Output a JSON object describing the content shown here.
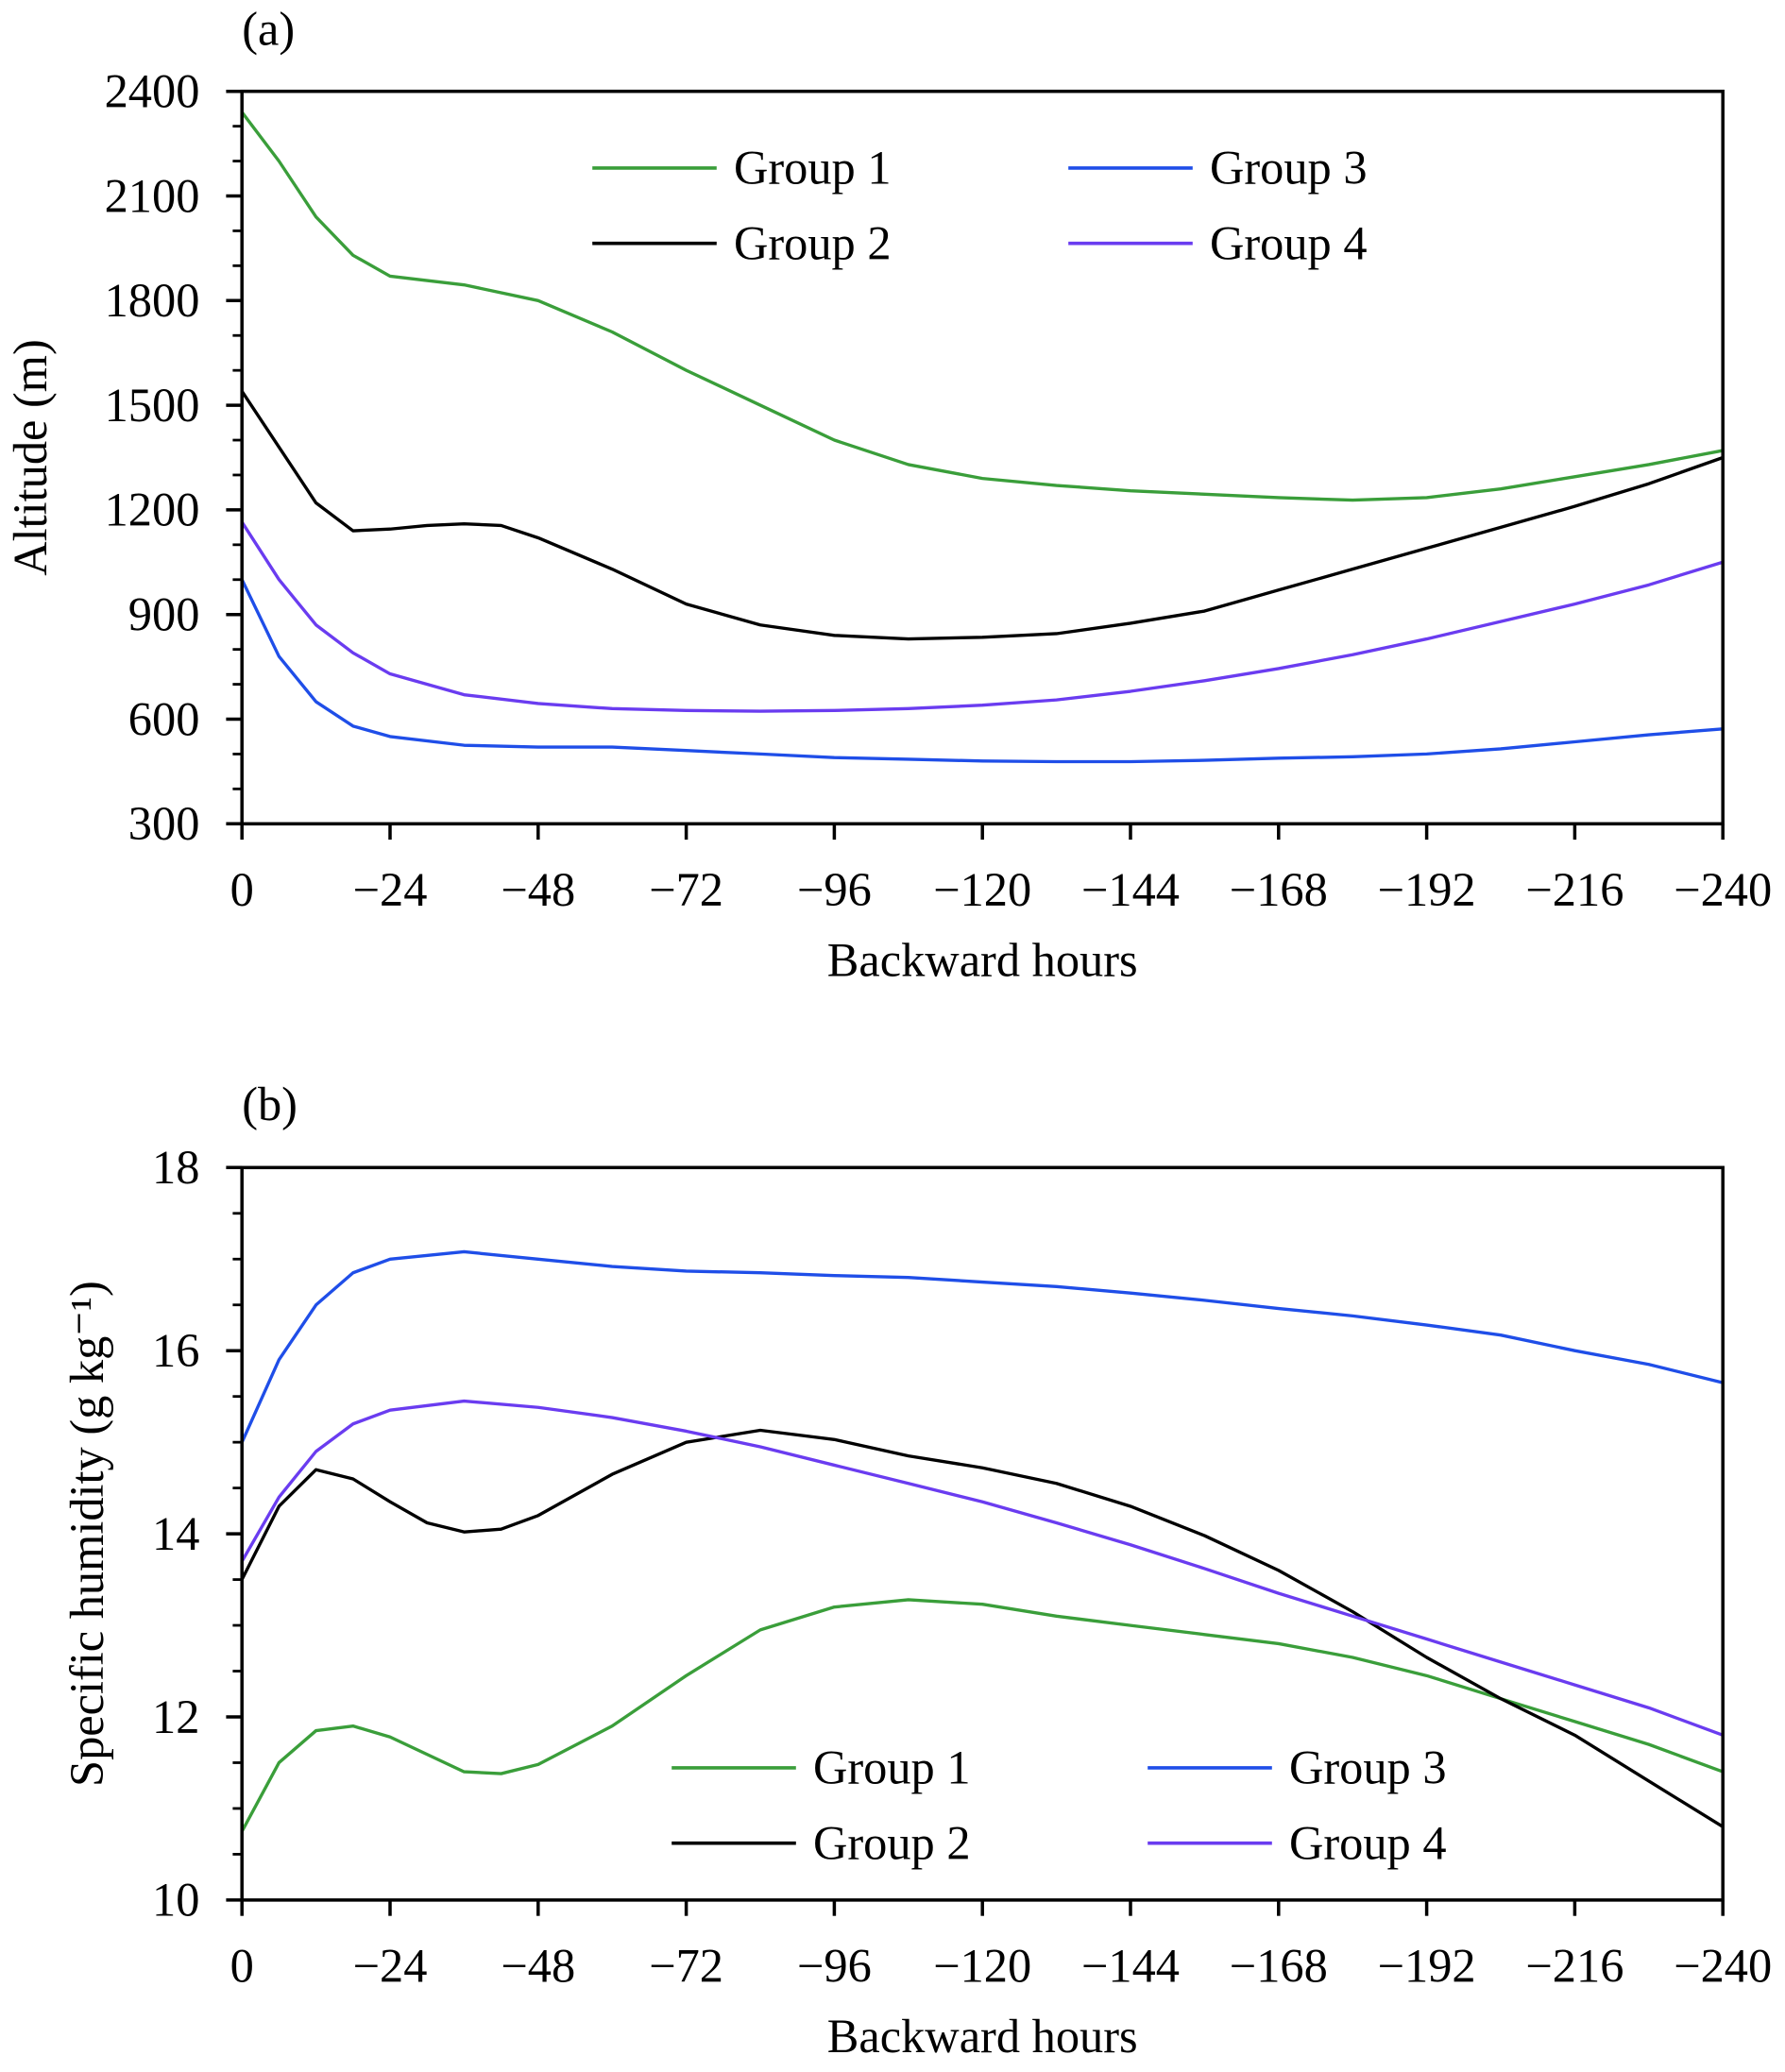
{
  "chart_data": [
    {
      "type": "line",
      "panel_label": "(a)",
      "xlabel": "Backward hours",
      "ylabel": "Altitude (m)",
      "xlim": [
        0,
        -240
      ],
      "ylim": [
        300,
        2400
      ],
      "xticks": [
        0,
        -24,
        -48,
        -72,
        -96,
        -120,
        -144,
        -168,
        -192,
        -216,
        -240
      ],
      "xtick_labels": [
        "0",
        "−24",
        "−48",
        "−72",
        "−96",
        "−120",
        "−144",
        "−168",
        "−192",
        "−216",
        "−240"
      ],
      "yticks": [
        300,
        600,
        900,
        1200,
        1500,
        1800,
        2100,
        2400
      ],
      "ytick_labels": [
        "300",
        "600",
        "900",
        "1200",
        "1500",
        "1800",
        "2100",
        "2400"
      ],
      "grid": false,
      "legend_placement": "top-center",
      "series": [
        {
          "name": "Group 1",
          "color": "#3a9e3a",
          "x": [
            0,
            -6,
            -12,
            -18,
            -24,
            -36,
            -48,
            -60,
            -72,
            -84,
            -96,
            -108,
            -120,
            -132,
            -144,
            -156,
            -168,
            -180,
            -192,
            -204,
            -216,
            -228,
            -240
          ],
          "y": [
            2340,
            2200,
            2040,
            1930,
            1870,
            1845,
            1800,
            1710,
            1600,
            1500,
            1400,
            1330,
            1290,
            1270,
            1255,
            1245,
            1235,
            1228,
            1235,
            1260,
            1295,
            1330,
            1370
          ]
        },
        {
          "name": "Group 2",
          "color": "#000000",
          "x": [
            0,
            -6,
            -12,
            -18,
            -24,
            -30,
            -36,
            -42,
            -48,
            -60,
            -72,
            -84,
            -96,
            -108,
            -120,
            -132,
            -144,
            -156,
            -168,
            -180,
            -192,
            -204,
            -216,
            -228,
            -240
          ],
          "y": [
            1540,
            1380,
            1220,
            1140,
            1145,
            1155,
            1160,
            1155,
            1120,
            1030,
            930,
            870,
            840,
            830,
            835,
            845,
            875,
            910,
            970,
            1030,
            1090,
            1150,
            1210,
            1275,
            1350
          ]
        },
        {
          "name": "Group 3",
          "color": "#1f4ee8",
          "x": [
            0,
            -6,
            -12,
            -18,
            -24,
            -36,
            -48,
            -60,
            -72,
            -84,
            -96,
            -108,
            -120,
            -132,
            -144,
            -156,
            -168,
            -180,
            -192,
            -204,
            -216,
            -228,
            -240
          ],
          "y": [
            1000,
            780,
            650,
            580,
            550,
            525,
            520,
            520,
            510,
            500,
            490,
            485,
            480,
            478,
            478,
            482,
            488,
            492,
            500,
            515,
            535,
            555,
            572
          ]
        },
        {
          "name": "Group 4",
          "color": "#6a3cf0",
          "x": [
            0,
            -6,
            -12,
            -18,
            -24,
            -36,
            -48,
            -60,
            -72,
            -84,
            -96,
            -108,
            -120,
            -132,
            -144,
            -156,
            -168,
            -180,
            -192,
            -204,
            -216,
            -228,
            -240
          ],
          "y": [
            1165,
            1000,
            870,
            790,
            730,
            670,
            645,
            630,
            625,
            623,
            625,
            630,
            640,
            655,
            680,
            710,
            745,
            785,
            830,
            880,
            930,
            985,
            1050
          ]
        }
      ]
    },
    {
      "type": "line",
      "panel_label": "(b)",
      "xlabel": "Backward hours",
      "ylabel": "Specific humidity (g kg⁻¹)",
      "xlim": [
        0,
        -240
      ],
      "ylim": [
        10,
        18
      ],
      "xticks": [
        0,
        -24,
        -48,
        -72,
        -96,
        -120,
        -144,
        -168,
        -192,
        -216,
        -240
      ],
      "xtick_labels": [
        "0",
        "−24",
        "−48",
        "−72",
        "−96",
        "−120",
        "−144",
        "−168",
        "−192",
        "−216",
        "−240"
      ],
      "yticks": [
        10,
        12,
        14,
        16,
        18
      ],
      "ytick_labels": [
        "10",
        "12",
        "14",
        "16",
        "18"
      ],
      "grid": false,
      "legend_placement": "bottom-center",
      "series": [
        {
          "name": "Group 1",
          "color": "#3a9e3a",
          "x": [
            0,
            -6,
            -12,
            -18,
            -24,
            -36,
            -42,
            -48,
            -60,
            -72,
            -84,
            -96,
            -108,
            -120,
            -132,
            -144,
            -156,
            -168,
            -180,
            -192,
            -204,
            -216,
            -228,
            -240
          ],
          "y": [
            10.75,
            11.5,
            11.85,
            11.9,
            11.78,
            11.4,
            11.38,
            11.48,
            11.9,
            12.45,
            12.95,
            13.2,
            13.28,
            13.23,
            13.1,
            13.0,
            12.9,
            12.8,
            12.65,
            12.45,
            12.2,
            11.95,
            11.7,
            11.4
          ]
        },
        {
          "name": "Group 2",
          "color": "#000000",
          "x": [
            0,
            -6,
            -12,
            -18,
            -24,
            -30,
            -36,
            -42,
            -48,
            -60,
            -72,
            -84,
            -96,
            -108,
            -120,
            -132,
            -144,
            -156,
            -168,
            -180,
            -192,
            -204,
            -216,
            -228,
            -240
          ],
          "y": [
            13.5,
            14.3,
            14.7,
            14.6,
            14.35,
            14.12,
            14.02,
            14.05,
            14.2,
            14.65,
            15.0,
            15.13,
            15.03,
            14.85,
            14.72,
            14.55,
            14.3,
            13.98,
            13.6,
            13.15,
            12.65,
            12.2,
            11.8,
            11.3,
            10.8
          ]
        },
        {
          "name": "Group 3",
          "color": "#1f4ee8",
          "x": [
            0,
            -6,
            -12,
            -18,
            -24,
            -36,
            -48,
            -60,
            -72,
            -84,
            -96,
            -108,
            -120,
            -132,
            -144,
            -156,
            -168,
            -180,
            -192,
            -204,
            -216,
            -228,
            -240
          ],
          "y": [
            15.0,
            15.9,
            16.5,
            16.85,
            17.0,
            17.08,
            17.0,
            16.92,
            16.87,
            16.85,
            16.82,
            16.8,
            16.75,
            16.7,
            16.63,
            16.55,
            16.46,
            16.38,
            16.28,
            16.17,
            16.0,
            15.85,
            15.65
          ]
        },
        {
          "name": "Group 4",
          "color": "#6a3cf0",
          "x": [
            0,
            -6,
            -12,
            -18,
            -24,
            -36,
            -48,
            -60,
            -72,
            -84,
            -96,
            -108,
            -120,
            -132,
            -144,
            -156,
            -168,
            -180,
            -192,
            -204,
            -216,
            -228,
            -240
          ],
          "y": [
            13.7,
            14.4,
            14.9,
            15.2,
            15.35,
            15.45,
            15.38,
            15.27,
            15.12,
            14.95,
            14.75,
            14.55,
            14.35,
            14.12,
            13.88,
            13.62,
            13.35,
            13.1,
            12.85,
            12.6,
            12.35,
            12.1,
            11.8
          ]
        }
      ]
    }
  ]
}
